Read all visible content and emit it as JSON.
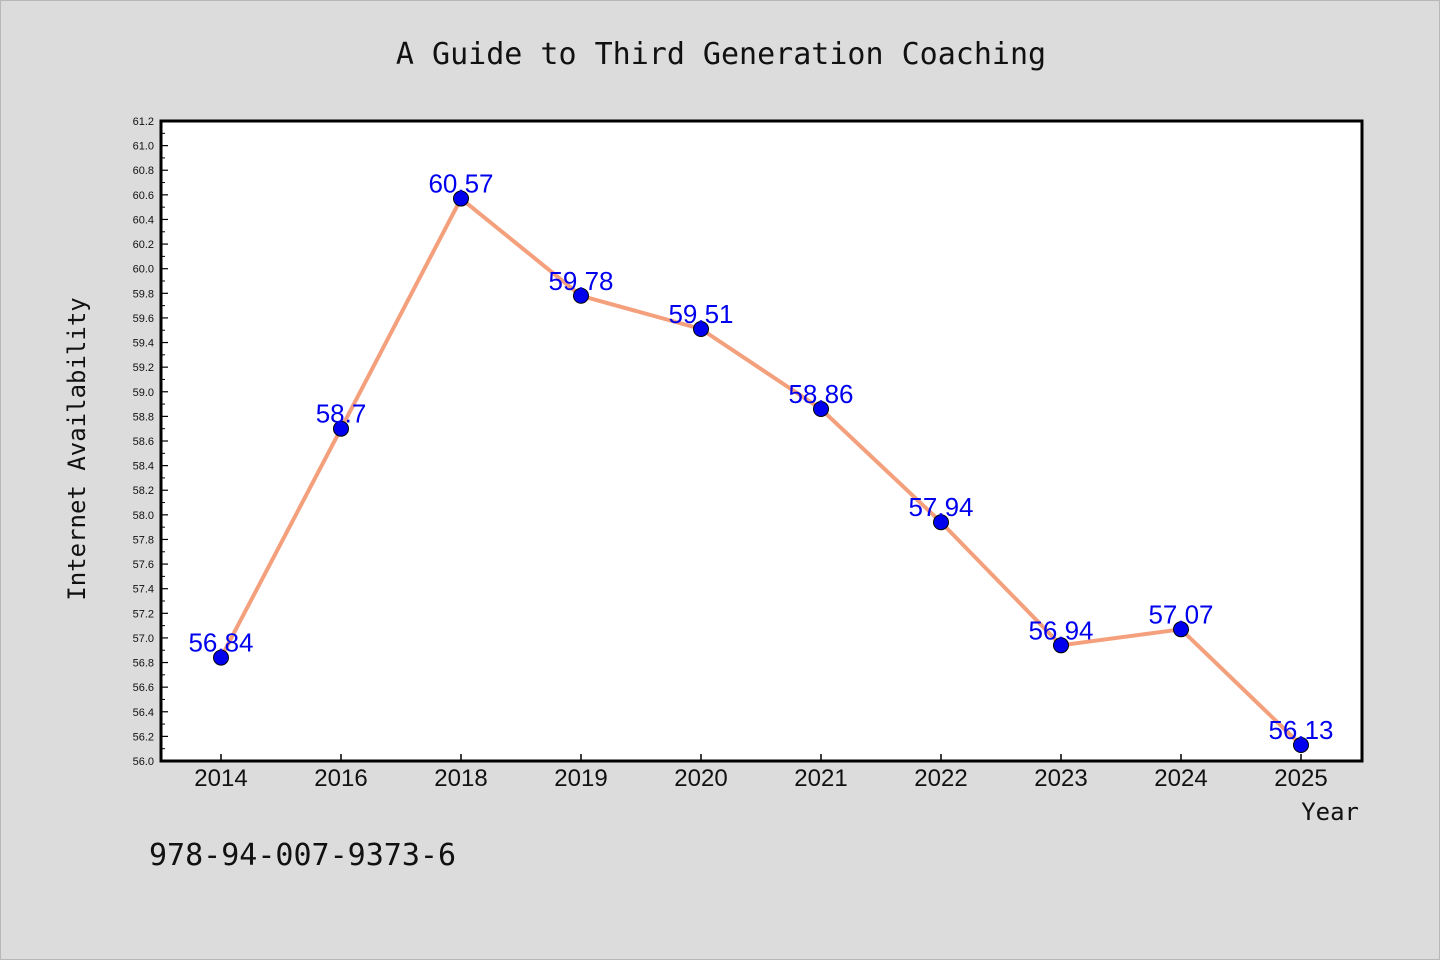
{
  "chart_data": {
    "type": "line",
    "title": "A Guide to Third Generation Coaching",
    "xlabel": "Year",
    "ylabel": "Internet Availability",
    "categories": [
      "2014",
      "2016",
      "2018",
      "2019",
      "2020",
      "2021",
      "2022",
      "2023",
      "2024",
      "2025"
    ],
    "series": [
      {
        "values": [
          56.84,
          58.7,
          60.57,
          59.78,
          59.51,
          58.86,
          57.94,
          56.94,
          57.07,
          56.13
        ],
        "data_labels": [
          "56.84",
          "58.7",
          "60.57",
          "59.78",
          "59.51",
          "58.86",
          "57.94",
          "56.94",
          "57.07",
          "56.13"
        ],
        "line_color": "#f4a07c",
        "marker_color": "#0000ee",
        "label_color": "#0000ee"
      }
    ],
    "ylim": [
      56.0,
      61.2
    ],
    "yticks": [
      "56.0",
      "56.2",
      "56.4",
      "56.6",
      "56.8",
      "57.0",
      "57.2",
      "57.4",
      "57.6",
      "57.8",
      "58.0",
      "58.2",
      "58.4",
      "58.6",
      "58.8",
      "59.0",
      "59.2",
      "59.4",
      "59.6",
      "59.8",
      "60.0",
      "60.2",
      "60.4",
      "60.6",
      "60.8",
      "61.0",
      "61.2"
    ],
    "grid": false,
    "legend": "none"
  },
  "footer": {
    "isbn": "978-94-007-9373-6"
  },
  "colors": {
    "background": "#dcdcdc",
    "plot_background": "#ffffff"
  }
}
